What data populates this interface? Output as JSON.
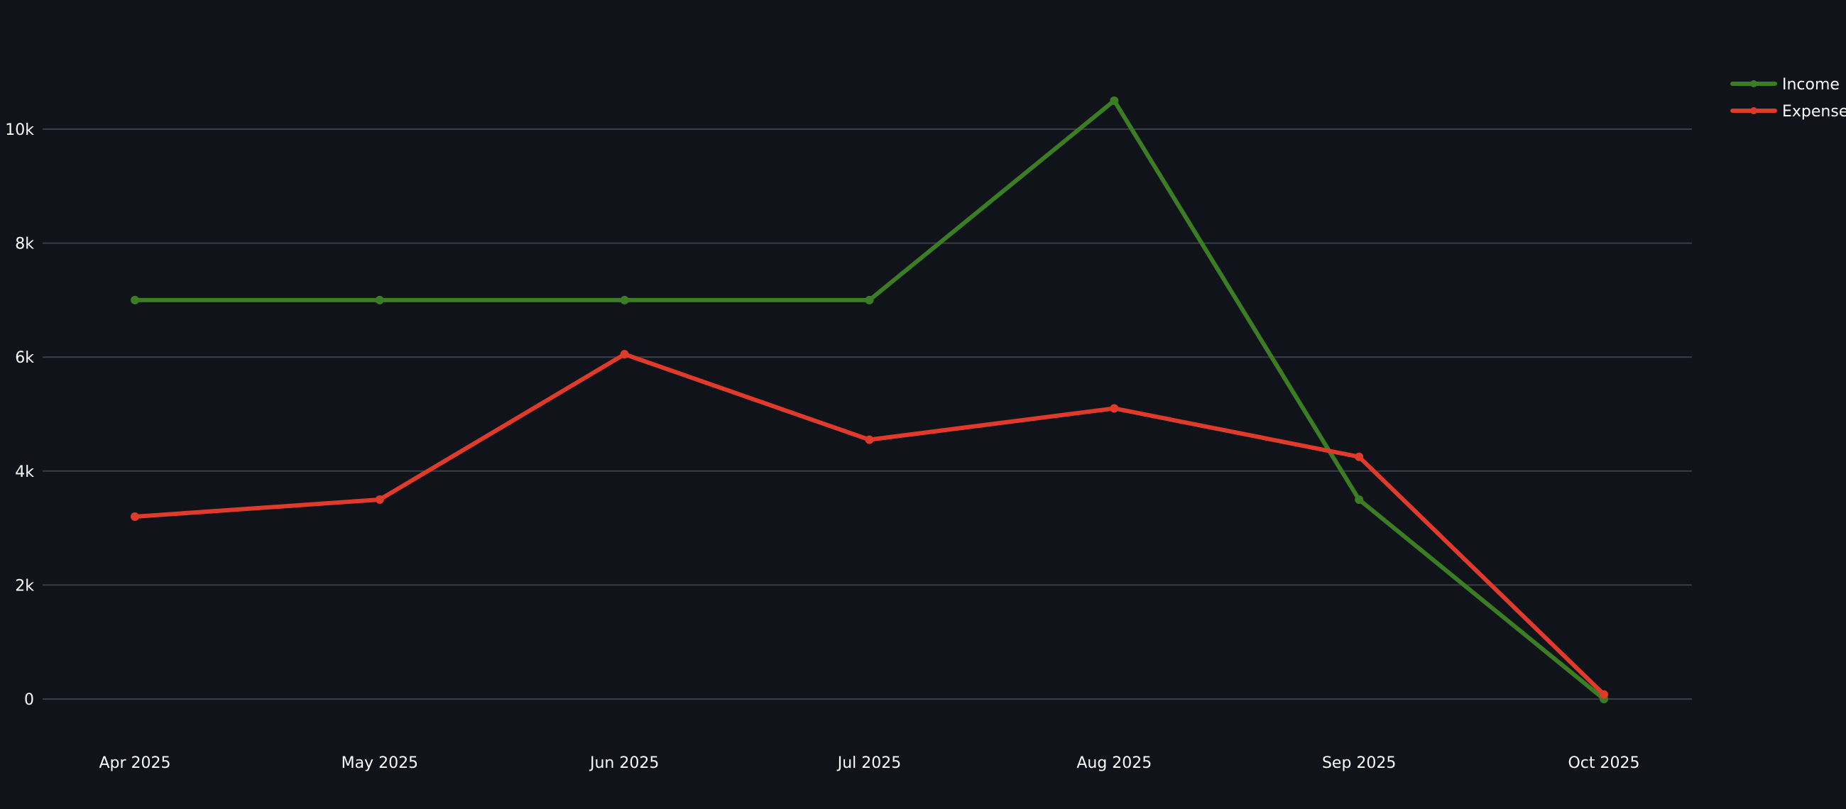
{
  "colors": {
    "background": "#11131a",
    "grid": "#3a3d47",
    "text": "#fafafa"
  },
  "chart_data": {
    "type": "line",
    "title": "",
    "xlabel": "",
    "ylabel": "",
    "x": [
      "Apr 2025",
      "May 2025",
      "Jun 2025",
      "Jul 2025",
      "Aug 2025",
      "Sep 2025",
      "Oct 2025"
    ],
    "yticks": [
      0,
      2000,
      4000,
      6000,
      8000,
      10000
    ],
    "ytick_labels": [
      "0",
      "2k",
      "4k",
      "6k",
      "8k",
      "10k"
    ],
    "ylim": [
      -1100,
      11500
    ],
    "grid": true,
    "legend_position": "top-right",
    "series": [
      {
        "name": "Income",
        "color": "#3a7d22",
        "values": [
          7000,
          7000,
          7000,
          7000,
          10500,
          3500,
          0
        ]
      },
      {
        "name": "Expenses",
        "color": "#e03a2a",
        "values": [
          3200,
          3500,
          6050,
          4550,
          5100,
          4250,
          80
        ]
      }
    ]
  }
}
